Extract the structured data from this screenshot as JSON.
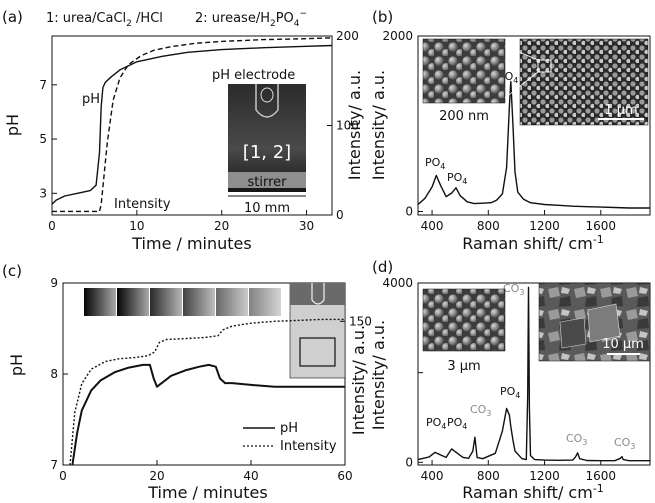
{
  "chart_data": [
    {
      "panel": "(a)",
      "type": "line",
      "legend_text_1": "1: urea/CaCl2 /HCl",
      "legend_text_2": "2: urease/H2PO4−",
      "xlabel": "Time / minutes",
      "ylabel": "pH",
      "ylabel_right": "Intensity/ a.u.",
      "xlim": [
        0,
        33
      ],
      "ylim": [
        2.2,
        8.8
      ],
      "ylim_right": [
        0,
        200
      ],
      "xticks": [
        0,
        10,
        20,
        30
      ],
      "yticks": [
        3,
        5,
        7
      ],
      "yticks_right": [
        0,
        100,
        200
      ],
      "series": [
        {
          "name": "pH",
          "style": "solid",
          "axis": "left",
          "x": [
            0,
            0.5,
            1.5,
            3,
            4.5,
            5.2,
            5.6,
            5.8,
            6.0,
            6.3,
            7,
            8,
            10,
            13,
            16,
            20,
            25,
            30,
            33
          ],
          "y": [
            2.6,
            2.75,
            2.9,
            3.0,
            3.1,
            3.3,
            4.5,
            6.2,
            6.9,
            7.1,
            7.3,
            7.55,
            7.85,
            8.05,
            8.2,
            8.3,
            8.37,
            8.42,
            8.45
          ]
        },
        {
          "name": "Intensity",
          "style": "dashed",
          "axis": "right",
          "x": [
            0,
            5.6,
            5.8,
            6.5,
            7.2,
            8,
            9,
            10.5,
            12,
            14,
            17,
            20,
            25,
            30,
            33
          ],
          "y": [
            4,
            4,
            12,
            80,
            128,
            153,
            168,
            178,
            184,
            188,
            192,
            194,
            196,
            197,
            198
          ]
        }
      ],
      "annotations": [
        "pH",
        "Intensity"
      ],
      "inset_labels": {
        "top": "pH electrode",
        "center": "[1, 2]",
        "bottom": "stirrer",
        "scale": "10 mm"
      }
    },
    {
      "panel": "(b)",
      "type": "line",
      "xlabel": "Raman shift/ cm-1",
      "ylabel": "Intensity/ a.u.",
      "xlim": [
        300,
        1950
      ],
      "ylim": [
        -40,
        2000
      ],
      "xticks": [
        400,
        800,
        1200,
        1600
      ],
      "yticks": [
        0,
        2000
      ],
      "series": [
        {
          "name": "",
          "x": [
            300,
            350,
            400,
            430,
            460,
            500,
            540,
            570,
            600,
            650,
            700,
            760,
            820,
            860,
            900,
            930,
            950,
            960,
            975,
            990,
            1010,
            1050,
            1100,
            1200,
            1300,
            1400,
            1500,
            1600,
            1700,
            1800,
            1900,
            1950
          ],
          "y": [
            80,
            150,
            280,
            410,
            300,
            170,
            210,
            270,
            180,
            110,
            90,
            95,
            100,
            130,
            200,
            500,
            1200,
            1480,
            1000,
            450,
            220,
            140,
            100,
            80,
            70,
            60,
            55,
            50,
            45,
            40,
            40,
            40
          ]
        }
      ],
      "annotations": [
        "PO4",
        "PO4",
        "PO4"
      ],
      "inset_labels": {
        "left": "200 nm",
        "right": "1 μm"
      }
    },
    {
      "panel": "(c)",
      "type": "line",
      "xlabel": "Time / minutes",
      "ylabel": "pH",
      "ylabel_right": "Intensity/ a.u.",
      "xlim": [
        0,
        60
      ],
      "ylim": [
        7,
        9
      ],
      "ylim_right": [
        0,
        190
      ],
      "xticks": [
        0,
        20,
        40,
        60
      ],
      "yticks": [
        7,
        8,
        9
      ],
      "yticks_right": [
        150
      ],
      "series": [
        {
          "name": "pH",
          "style": "solid",
          "axis": "left",
          "x": [
            2,
            3,
            4,
            6,
            8,
            11,
            14,
            17,
            18.5,
            19.3,
            20,
            21,
            23,
            26,
            29,
            31,
            32.5,
            33.4,
            34.5,
            36,
            40,
            45,
            50,
            55,
            60
          ],
          "y": [
            7.0,
            7.35,
            7.6,
            7.82,
            7.93,
            8.02,
            8.07,
            8.1,
            8.1,
            7.95,
            7.86,
            7.9,
            7.98,
            8.04,
            8.08,
            8.1,
            8.08,
            7.95,
            7.9,
            7.9,
            7.88,
            7.86,
            7.86,
            7.86,
            7.86
          ]
        },
        {
          "name": "Intensity",
          "style": "dotted",
          "axis": "right",
          "x": [
            1.5,
            2.5,
            4,
            6,
            9,
            12,
            15,
            18,
            19.5,
            20.5,
            22,
            26,
            30,
            33,
            34,
            36,
            40,
            45,
            50,
            55,
            60
          ],
          "y": [
            0,
            55,
            85,
            100,
            108,
            111,
            112,
            114,
            118,
            128,
            131,
            132,
            133,
            135,
            141,
            145,
            148,
            150,
            151,
            152,
            152
          ]
        }
      ]
    },
    {
      "panel": "(d)",
      "type": "line",
      "xlabel": "Raman shift/ cm-1",
      "ylabel": "Intensity/ a.u.",
      "xlim": [
        300,
        1950
      ],
      "ylim": [
        -60,
        4000
      ],
      "xticks": [
        400,
        800,
        1200,
        1600
      ],
      "yticks": [
        0,
        2000,
        4000
      ],
      "series": [
        {
          "name": "",
          "x": [
            300,
            380,
            420,
            450,
            500,
            540,
            580,
            620,
            660,
            690,
            705,
            720,
            760,
            850,
            900,
            930,
            950,
            960,
            975,
            990,
            1040,
            1070,
            1080,
            1086,
            1092,
            1100,
            1130,
            1200,
            1300,
            1400,
            1420,
            1435,
            1450,
            1500,
            1600,
            1700,
            1740,
            1750,
            1760,
            1800,
            1950
          ],
          "y": [
            60,
            120,
            220,
            180,
            110,
            300,
            200,
            110,
            90,
            250,
            560,
            110,
            80,
            200,
            700,
            1200,
            1050,
            800,
            500,
            250,
            80,
            60,
            1500,
            3900,
            1200,
            150,
            60,
            50,
            45,
            50,
            120,
            210,
            80,
            40,
            35,
            35,
            90,
            130,
            60,
            35,
            35
          ]
        }
      ],
      "annotations": [
        "PO4",
        "PO4",
        "CO3",
        "PO4",
        "CO3",
        "CO3",
        "CO3"
      ],
      "inset_labels": {
        "left": "3 μm",
        "right": "10 μm"
      }
    }
  ],
  "colors": {
    "line": "#111111",
    "annotation_gray": "#8a8a8a",
    "inset_bg": "#1c1c1c"
  }
}
